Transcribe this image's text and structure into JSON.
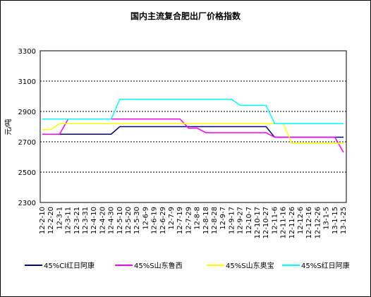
{
  "chart_data": {
    "type": "line",
    "title": "国内主流复合肥出厂价格指数",
    "y_label": "元/吨",
    "categories": [
      "12-2-10",
      "12-2-20",
      "12-3-1",
      "12-3-11",
      "12-3-21",
      "12-3-31",
      "12-4-10",
      "12-4-20",
      "12-4-30",
      "12-5-10",
      "12-5-20",
      "12-5-30",
      "12-6-9",
      "12-6-19",
      "12-6-29",
      "12-7-9",
      "12-7-19",
      "12-7-29",
      "12-8-8",
      "12-8-18",
      "12-8-28",
      "12-9-7",
      "12-9-17",
      "12-9-27",
      "12-10-7",
      "12-10-17",
      "12-10-27",
      "12-11-6",
      "12-11-16",
      "12-11-26",
      "12-12-6",
      "12-12-16",
      "12-12-26",
      "13-1-5",
      "13-1-15",
      "13-1-25"
    ],
    "series": [
      {
        "name": "45%Cl红日阿康",
        "color": "#000080",
        "values": [
          2750,
          2750,
          2750,
          2750,
          2750,
          2750,
          2750,
          2750,
          2750,
          2800,
          2800,
          2800,
          2800,
          2800,
          2800,
          2800,
          2800,
          2800,
          2800,
          2800,
          2800,
          2800,
          2800,
          2800,
          2800,
          2800,
          2800,
          2730,
          2730,
          2730,
          2730,
          2730,
          2730,
          2730,
          2730,
          2730
        ]
      },
      {
        "name": "45%S山东鲁西",
        "color": "#ff00ff",
        "values": [
          2750,
          2750,
          2750,
          2850,
          2850,
          2850,
          2850,
          2850,
          2850,
          2850,
          2850,
          2850,
          2850,
          2850,
          2850,
          2850,
          2850,
          2790,
          2790,
          2760,
          2760,
          2760,
          2760,
          2760,
          2760,
          2760,
          2760,
          2730,
          2730,
          2730,
          2730,
          2730,
          2730,
          2730,
          2730,
          2630
        ]
      },
      {
        "name": "45%S山东奥宝",
        "color": "#ffff00",
        "values": [
          2780,
          2780,
          2820,
          2820,
          2820,
          2820,
          2820,
          2820,
          2820,
          2820,
          2820,
          2820,
          2820,
          2820,
          2820,
          2820,
          2820,
          2820,
          2820,
          2820,
          2820,
          2820,
          2820,
          2820,
          2820,
          2820,
          2820,
          2820,
          2820,
          2690,
          2690,
          2690,
          2690,
          2690,
          2690,
          2690
        ]
      },
      {
        "name": "45%S红日阿康",
        "color": "#00ffff",
        "values": [
          2850,
          2850,
          2850,
          2850,
          2850,
          2850,
          2850,
          2850,
          2850,
          2980,
          2980,
          2980,
          2980,
          2980,
          2980,
          2980,
          2980,
          2980,
          2980,
          2980,
          2980,
          2980,
          2980,
          2940,
          2940,
          2940,
          2940,
          2820,
          2820,
          2820,
          2820,
          2820,
          2820,
          2820,
          2820,
          2820
        ]
      }
    ],
    "ylim": [
      2300,
      3300
    ],
    "yticks": [
      2300,
      2500,
      2700,
      2900,
      3100,
      3300
    ],
    "grid": true
  }
}
